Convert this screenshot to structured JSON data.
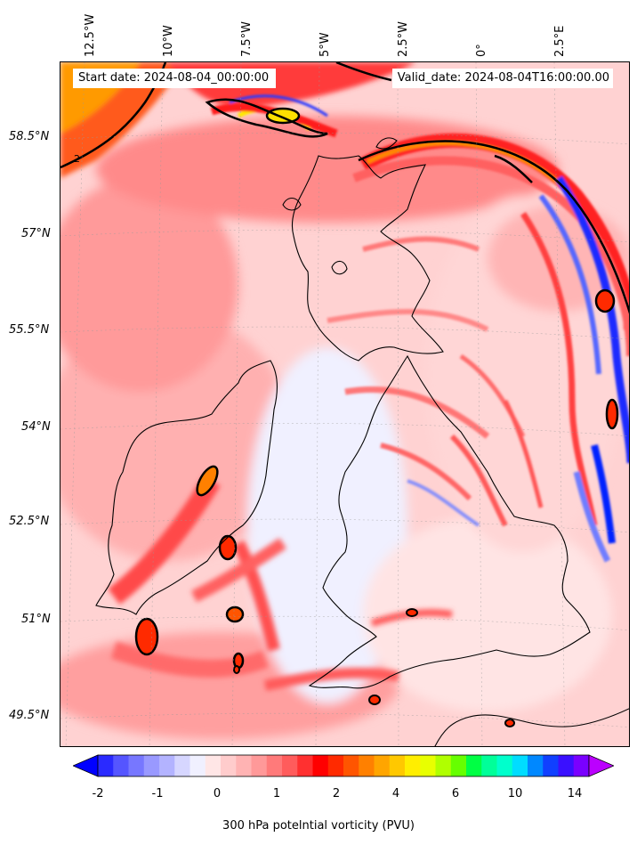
{
  "info": {
    "start_label": "Start date: 2024-08-04_00:00:00",
    "valid_label": "Valid_date: 2024-08-04T16:00:00.00"
  },
  "map": {
    "longitude_labels": [
      "12.5°W",
      "10°W",
      "7.5°W",
      "5°W",
      "2.5°W",
      "0°",
      "2.5°E"
    ],
    "latitude_labels": [
      "58.5°N",
      "57°N",
      "55.5°N",
      "54°N",
      "52.5°N",
      "51°N",
      "49.5°N"
    ],
    "field_variable": "300 hPa potential vorticity",
    "contour_label": "2",
    "colors": {
      "background_low": "#ffe4e4",
      "moderate": "#ff9a9a",
      "high": "#ff2a00",
      "very_high": "#ff9900",
      "negative": "#c8d0ff",
      "coast": "#000000"
    }
  },
  "colorbar": {
    "title": "300 hPa potelntial vorticity (PVU)",
    "tick_labels": [
      "-2",
      "-1",
      "0",
      "1",
      "2",
      "4",
      "6",
      "10",
      "14"
    ],
    "levels": [
      "#0000ff",
      "#2a2aff",
      "#5555ff",
      "#7777ff",
      "#9999ff",
      "#b3b3ff",
      "#d6d6ff",
      "#f0f0ff",
      "#ffe6e6",
      "#ffcccc",
      "#ffb3b3",
      "#ff9999",
      "#ff7a7a",
      "#ff5c5c",
      "#ff3030",
      "#ff0000",
      "#ff2a00",
      "#ff5500",
      "#ff8000",
      "#ffa500",
      "#ffc800",
      "#ffee00",
      "#e8ff00",
      "#b0ff00",
      "#66ff00",
      "#00ff44",
      "#00ff99",
      "#00ffcc",
      "#00ddff",
      "#0088ff",
      "#1040ff",
      "#3a10ff",
      "#7a00ff",
      "#bb00ff"
    ]
  }
}
